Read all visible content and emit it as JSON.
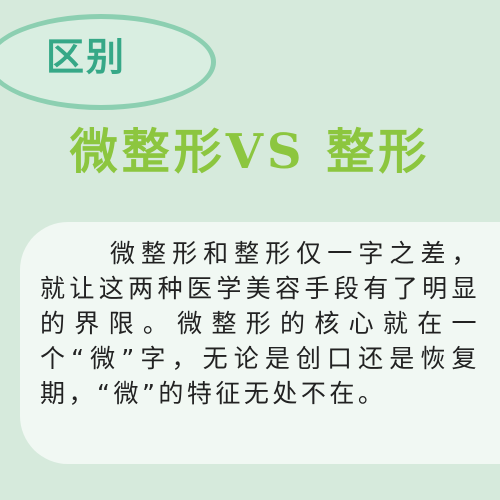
{
  "badge": {
    "label": "区别"
  },
  "headline": {
    "text": "微整形VS 整形"
  },
  "body": {
    "paragraph": "微整形和整形仅一字之差，就让这两种医学美容手段有了明显的界限。微整形的核心就在一个“微”字，无论是创口还是恢复期，“微”的特征无处不在。"
  },
  "colors": {
    "background": "#d6eadc",
    "pill_border": "#8ccfb1",
    "pill_text": "#36a887",
    "headline": "#8cc63f",
    "card": "#f1f8f3",
    "body_text": "#222222"
  }
}
